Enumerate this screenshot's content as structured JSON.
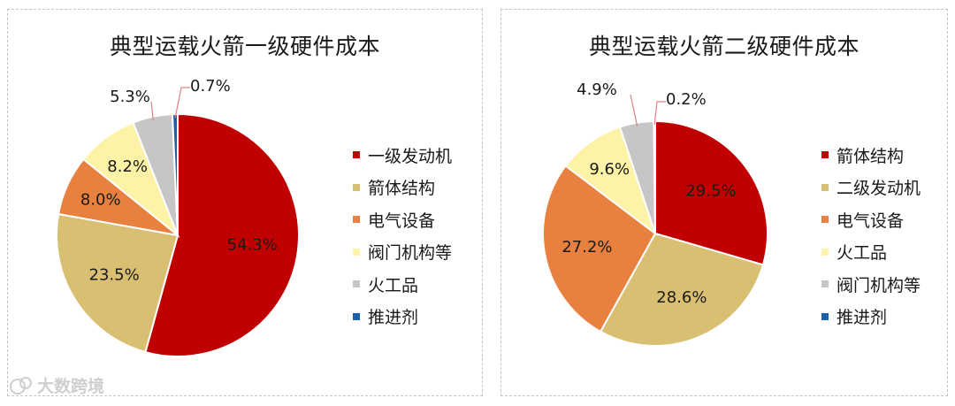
{
  "colors": {
    "red": "#c00000",
    "tan": "#d9bf72",
    "orange": "#e8803f",
    "lightyellow": "#fdf3a6",
    "gray": "#c6c6c6",
    "blue": "#1f5fa8",
    "leader": "#e08080"
  },
  "chart_data": [
    {
      "type": "pie",
      "title": "典型运载火箭一级硬件成本",
      "legend_position": "right",
      "slices": [
        {
          "label": "一级发动机",
          "value": 54.3,
          "display": "54.3%",
          "color": "#c00000"
        },
        {
          "label": "箭体结构",
          "value": 23.5,
          "display": "23.5%",
          "color": "#d9bf72"
        },
        {
          "label": "电气设备",
          "value": 8.0,
          "display": "8.0%",
          "color": "#e8803f"
        },
        {
          "label": "阀门机构等",
          "value": 8.2,
          "display": "8.2%",
          "color": "#fdf3a6"
        },
        {
          "label": "火工品",
          "value": 5.3,
          "display": "5.3%",
          "color": "#c6c6c6"
        },
        {
          "label": "推进剂",
          "value": 0.7,
          "display": "0.7%",
          "color": "#1f5fa8"
        }
      ]
    },
    {
      "type": "pie",
      "title": "典型运载火箭二级硬件成本",
      "legend_position": "right",
      "slices": [
        {
          "label": "箭体结构",
          "value": 29.5,
          "display": "29.5%",
          "color": "#c00000"
        },
        {
          "label": "二级发动机",
          "value": 28.6,
          "display": "28.6%",
          "color": "#d9bf72"
        },
        {
          "label": "电气设备",
          "value": 27.2,
          "display": "27.2%",
          "color": "#e8803f"
        },
        {
          "label": "火工品",
          "value": 9.6,
          "display": "9.6%",
          "color": "#fdf3a6"
        },
        {
          "label": "阀门机构等",
          "value": 4.9,
          "display": "4.9%",
          "color": "#c6c6c6"
        },
        {
          "label": "推进剂",
          "value": 0.2,
          "display": "0.2%",
          "color": "#1f5fa8"
        }
      ]
    }
  ],
  "watermark": {
    "text": "大数跨境"
  }
}
